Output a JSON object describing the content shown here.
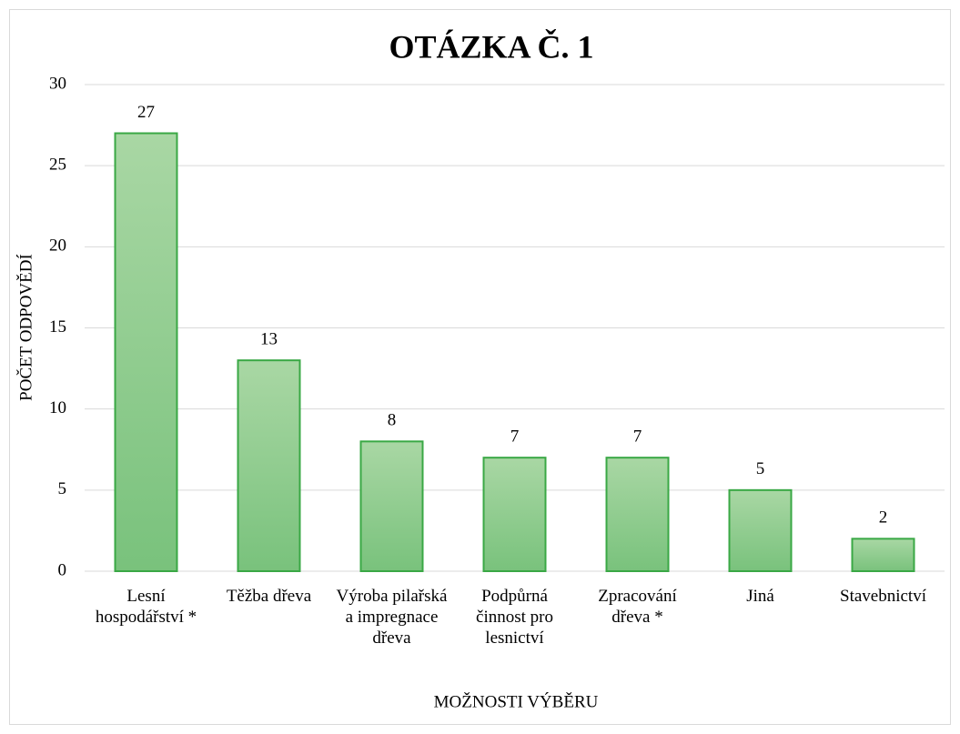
{
  "chart_data": {
    "type": "bar",
    "title": "OTÁZKA Č. 1",
    "x_label": "MOŽNOSTI VÝBĚRU",
    "y_label": "POČET ODPOVĚDÍ",
    "categories": [
      "Lesní hospodářství *",
      "Těžba dřeva",
      "Výroba pilařská a impregnace dřeva",
      "Podpůrná činnost pro lesnictví",
      "Zpracování dřeva *",
      "Jiná",
      "Stavebnictví"
    ],
    "values": [
      27,
      13,
      8,
      7,
      7,
      5,
      2
    ],
    "color": "#8fcd8d",
    "ylim": [
      0,
      30
    ],
    "yticks": [
      0,
      5,
      10,
      15,
      20,
      25,
      30
    ],
    "grid": true
  }
}
